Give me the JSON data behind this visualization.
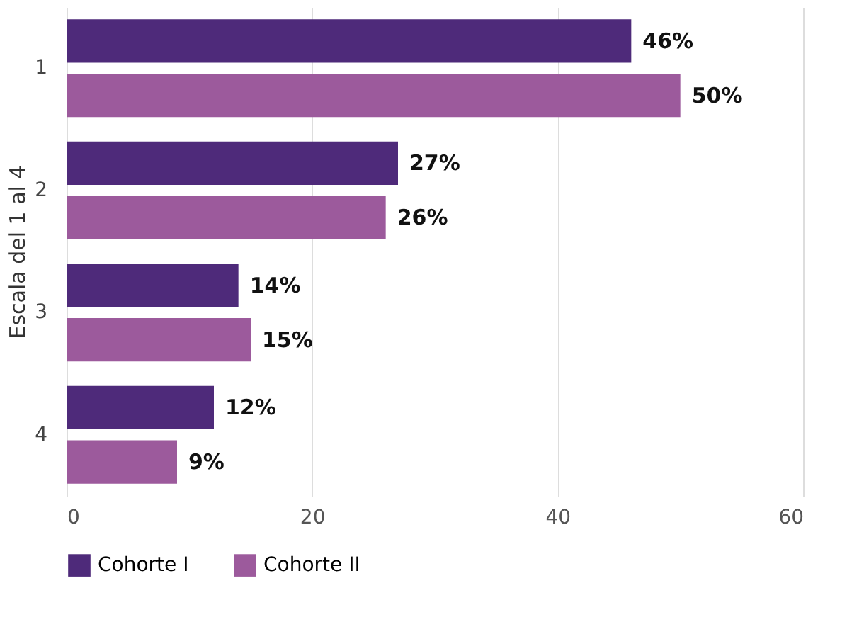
{
  "chart_data": {
    "type": "bar",
    "orientation": "horizontal",
    "ylabel": "Escala del 1 al 4",
    "categories": [
      "1",
      "2",
      "3",
      "4"
    ],
    "series": [
      {
        "name": "Cohorte I",
        "color": "#4e2a7a",
        "values": [
          46,
          27,
          14,
          12
        ],
        "value_labels": [
          "46%",
          "27%",
          "14%",
          "12%"
        ]
      },
      {
        "name": "Cohorte II",
        "color": "#9c5a9c",
        "values": [
          50,
          26,
          15,
          9
        ],
        "value_labels": [
          "50%",
          "26%",
          "15%",
          "9%"
        ]
      }
    ],
    "xlim": [
      0,
      60
    ],
    "xticks": [
      0,
      20,
      40,
      60
    ],
    "grid": "x",
    "legend": "bottom"
  }
}
